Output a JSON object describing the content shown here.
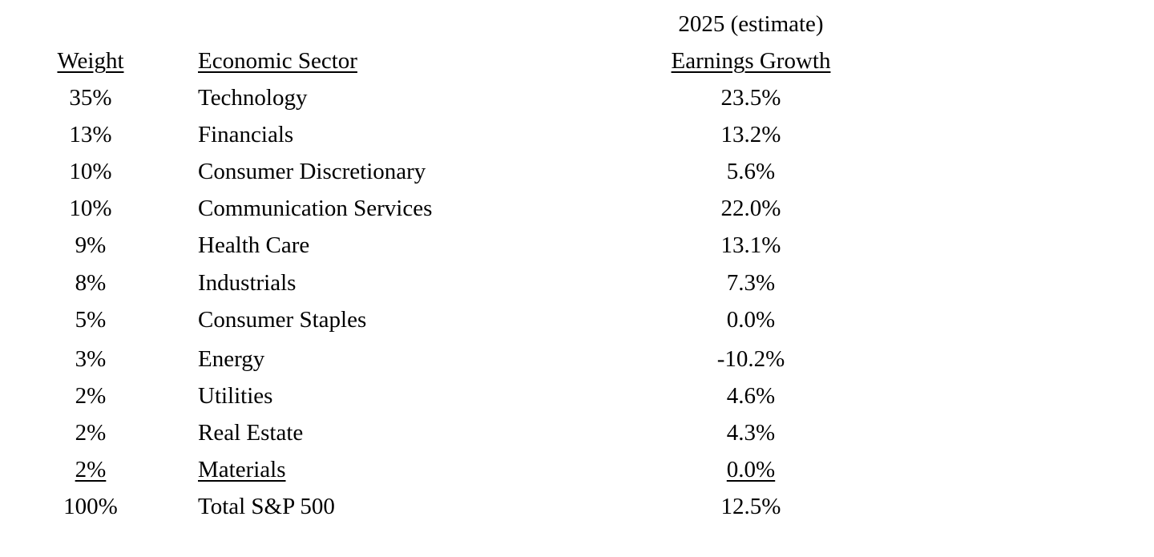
{
  "table": {
    "header_note": "2025 (estimate)",
    "columns": [
      "Weight",
      "Economic Sector",
      "Earnings Growth"
    ],
    "rows": [
      [
        "35%",
        "Technology",
        "23.5%"
      ],
      [
        "13%",
        "Financials",
        "13.2%"
      ],
      [
        "10%",
        "Consumer Discretionary",
        "5.6%"
      ],
      [
        "10%",
        "Communication Services",
        "22.0%"
      ],
      [
        "9%",
        "Health Care",
        "13.1%"
      ],
      [
        "8%",
        "Industrials",
        "7.3%"
      ],
      [
        "5%",
        "Consumer Staples",
        "0.0%"
      ],
      [
        "3%",
        "Energy",
        "-10.2%"
      ],
      [
        "2%",
        "Utilities",
        "4.6%"
      ],
      [
        "2%",
        "Real Estate",
        "4.3%"
      ],
      [
        "2%",
        "Materials",
        "0.0%"
      ]
    ],
    "total": [
      "100%",
      "Total S&P 500",
      "12.5%"
    ]
  }
}
